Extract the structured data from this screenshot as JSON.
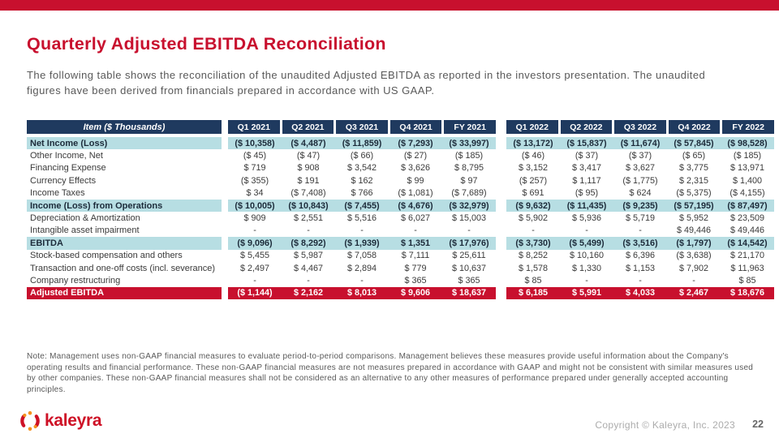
{
  "colors": {
    "accent_red": "#C8102E",
    "header_navy": "#1F3A5F",
    "highlight_teal": "#B7DEE3",
    "body_text": "#3a3a3a",
    "muted_text": "#595959"
  },
  "title": "Quarterly Adjusted EBITDA Reconciliation",
  "subtitle": "The following table shows the reconciliation of the unaudited Adjusted EBITDA as reported in the investors presentation. The unaudited figures have been derived from financials prepared in accordance with US GAAP.",
  "table": {
    "item_header": "Item ($ Thousands)",
    "col_groups": [
      {
        "headers": [
          "Q1 2021",
          "Q2 2021",
          "Q3 2021",
          "Q4 2021",
          "FY 2021"
        ]
      },
      {
        "headers": [
          "Q1 2022",
          "Q2 2022",
          "Q3 2022",
          "Q4 2022",
          "FY 2022"
        ]
      }
    ],
    "rows": [
      {
        "label": "Net Income (Loss)",
        "style": "teal",
        "g1": [
          "($ 10,358)",
          "($ 4,487)",
          "($ 11,859)",
          "($ 7,293)",
          "($ 33,997)"
        ],
        "g2": [
          "($ 13,172)",
          "($ 15,837)",
          "($ 11,674)",
          "($ 57,845)",
          "($ 98,528)"
        ]
      },
      {
        "label": "Other Income, Net",
        "style": "plain",
        "g1": [
          "($ 45)",
          "($ 47)",
          "($ 66)",
          "($ 27)",
          "($ 185)"
        ],
        "g2": [
          "($ 46)",
          "($ 37)",
          "($ 37)",
          "($ 65)",
          "($ 185)"
        ]
      },
      {
        "label": "Financing Expense",
        "style": "plain",
        "g1": [
          "$ 719",
          "$ 908",
          "$ 3,542",
          "$ 3,626",
          "$ 8,795"
        ],
        "g2": [
          "$ 3,152",
          "$ 3,417",
          "$ 3,627",
          "$ 3,775",
          "$ 13,971"
        ]
      },
      {
        "label": "Currency Effects",
        "style": "plain",
        "g1": [
          "($ 355)",
          "$ 191",
          "$ 162",
          "$ 99",
          "$ 97"
        ],
        "g2": [
          "($ 257)",
          "$ 1,117",
          "($ 1,775)",
          "$ 2,315",
          "$ 1,400"
        ]
      },
      {
        "label": "Income Taxes",
        "style": "plain",
        "g1": [
          "$ 34",
          "($ 7,408)",
          "$ 766",
          "($ 1,081)",
          "($ 7,689)"
        ],
        "g2": [
          "$ 691",
          "($ 95)",
          "$ 624",
          "($ 5,375)",
          "($ 4,155)"
        ]
      },
      {
        "label": "Income (Loss) from Operations",
        "style": "teal",
        "g1": [
          "($ 10,005)",
          "($ 10,843)",
          "($ 7,455)",
          "($ 4,676)",
          "($ 32,979)"
        ],
        "g2": [
          "($ 9,632)",
          "($ 11,435)",
          "($ 9,235)",
          "($ 57,195)",
          "($ 87,497)"
        ]
      },
      {
        "label": "Depreciation & Amortization",
        "style": "plain",
        "g1": [
          "$ 909",
          "$ 2,551",
          "$ 5,516",
          "$ 6,027",
          "$ 15,003"
        ],
        "g2": [
          "$ 5,902",
          "$ 5,936",
          "$ 5,719",
          "$ 5,952",
          "$ 23,509"
        ]
      },
      {
        "label": "Intangible asset impairment",
        "style": "plain",
        "g1": [
          "-",
          "-",
          "-",
          "-",
          "-"
        ],
        "g2": [
          "-",
          "-",
          "-",
          "$ 49,446",
          "$ 49,446"
        ]
      },
      {
        "label": "EBITDA",
        "style": "teal",
        "g1": [
          "($ 9,096)",
          "($ 8,292)",
          "($ 1,939)",
          "$ 1,351",
          "($ 17,976)"
        ],
        "g2": [
          "($ 3,730)",
          "($ 5,499)",
          "($ 3,516)",
          "($ 1,797)",
          "($ 14,542)"
        ]
      },
      {
        "label": "Stock-based compensation and others",
        "style": "plain",
        "g1": [
          "$ 5,455",
          "$ 5,987",
          "$ 7,058",
          "$ 7,111",
          "$ 25,611"
        ],
        "g2": [
          "$ 8,252",
          "$ 10,160",
          "$ 6,396",
          "($ 3,638)",
          "$ 21,170"
        ]
      },
      {
        "label": "Transaction and one-off costs (incl. severance)",
        "style": "plain",
        "g1": [
          "$ 2,497",
          "$ 4,467",
          "$ 2,894",
          "$ 779",
          "$ 10,637"
        ],
        "g2": [
          "$ 1,578",
          "$ 1,330",
          "$ 1,153",
          "$ 7,902",
          "$ 11,963"
        ]
      },
      {
        "label": "Company restructuring",
        "style": "plain",
        "g1": [
          "-",
          "-",
          "-",
          "$ 365",
          "$ 365"
        ],
        "g2": [
          "$ 85",
          "-",
          "-",
          "-",
          "$ 85"
        ]
      },
      {
        "label": "Adjusted EBITDA",
        "style": "red",
        "g1": [
          "($ 1,144)",
          "$ 2,162",
          "$ 8,013",
          "$ 9,606",
          "$ 18,637"
        ],
        "g2": [
          "$ 6,185",
          "$ 5,991",
          "$ 4,033",
          "$ 2,467",
          "$ 18,676"
        ]
      }
    ]
  },
  "note": "Note: Management uses non-GAAP financial measures to evaluate period-to-period comparisons. Management believes these measures provide useful information about the Company's operating results and financial performance. These non-GAAP financial measures are not measures prepared in accordance with GAAP and might not be consistent with similar measures used by other companies. These non-GAAP financial measures shall not be considered as an alternative to any other measures of performance prepared under generally accepted accounting principles.",
  "footer": {
    "logo_text": "kaleyra",
    "copyright": "Copyright © Kaleyra, Inc. 2023",
    "page_number": "22"
  }
}
